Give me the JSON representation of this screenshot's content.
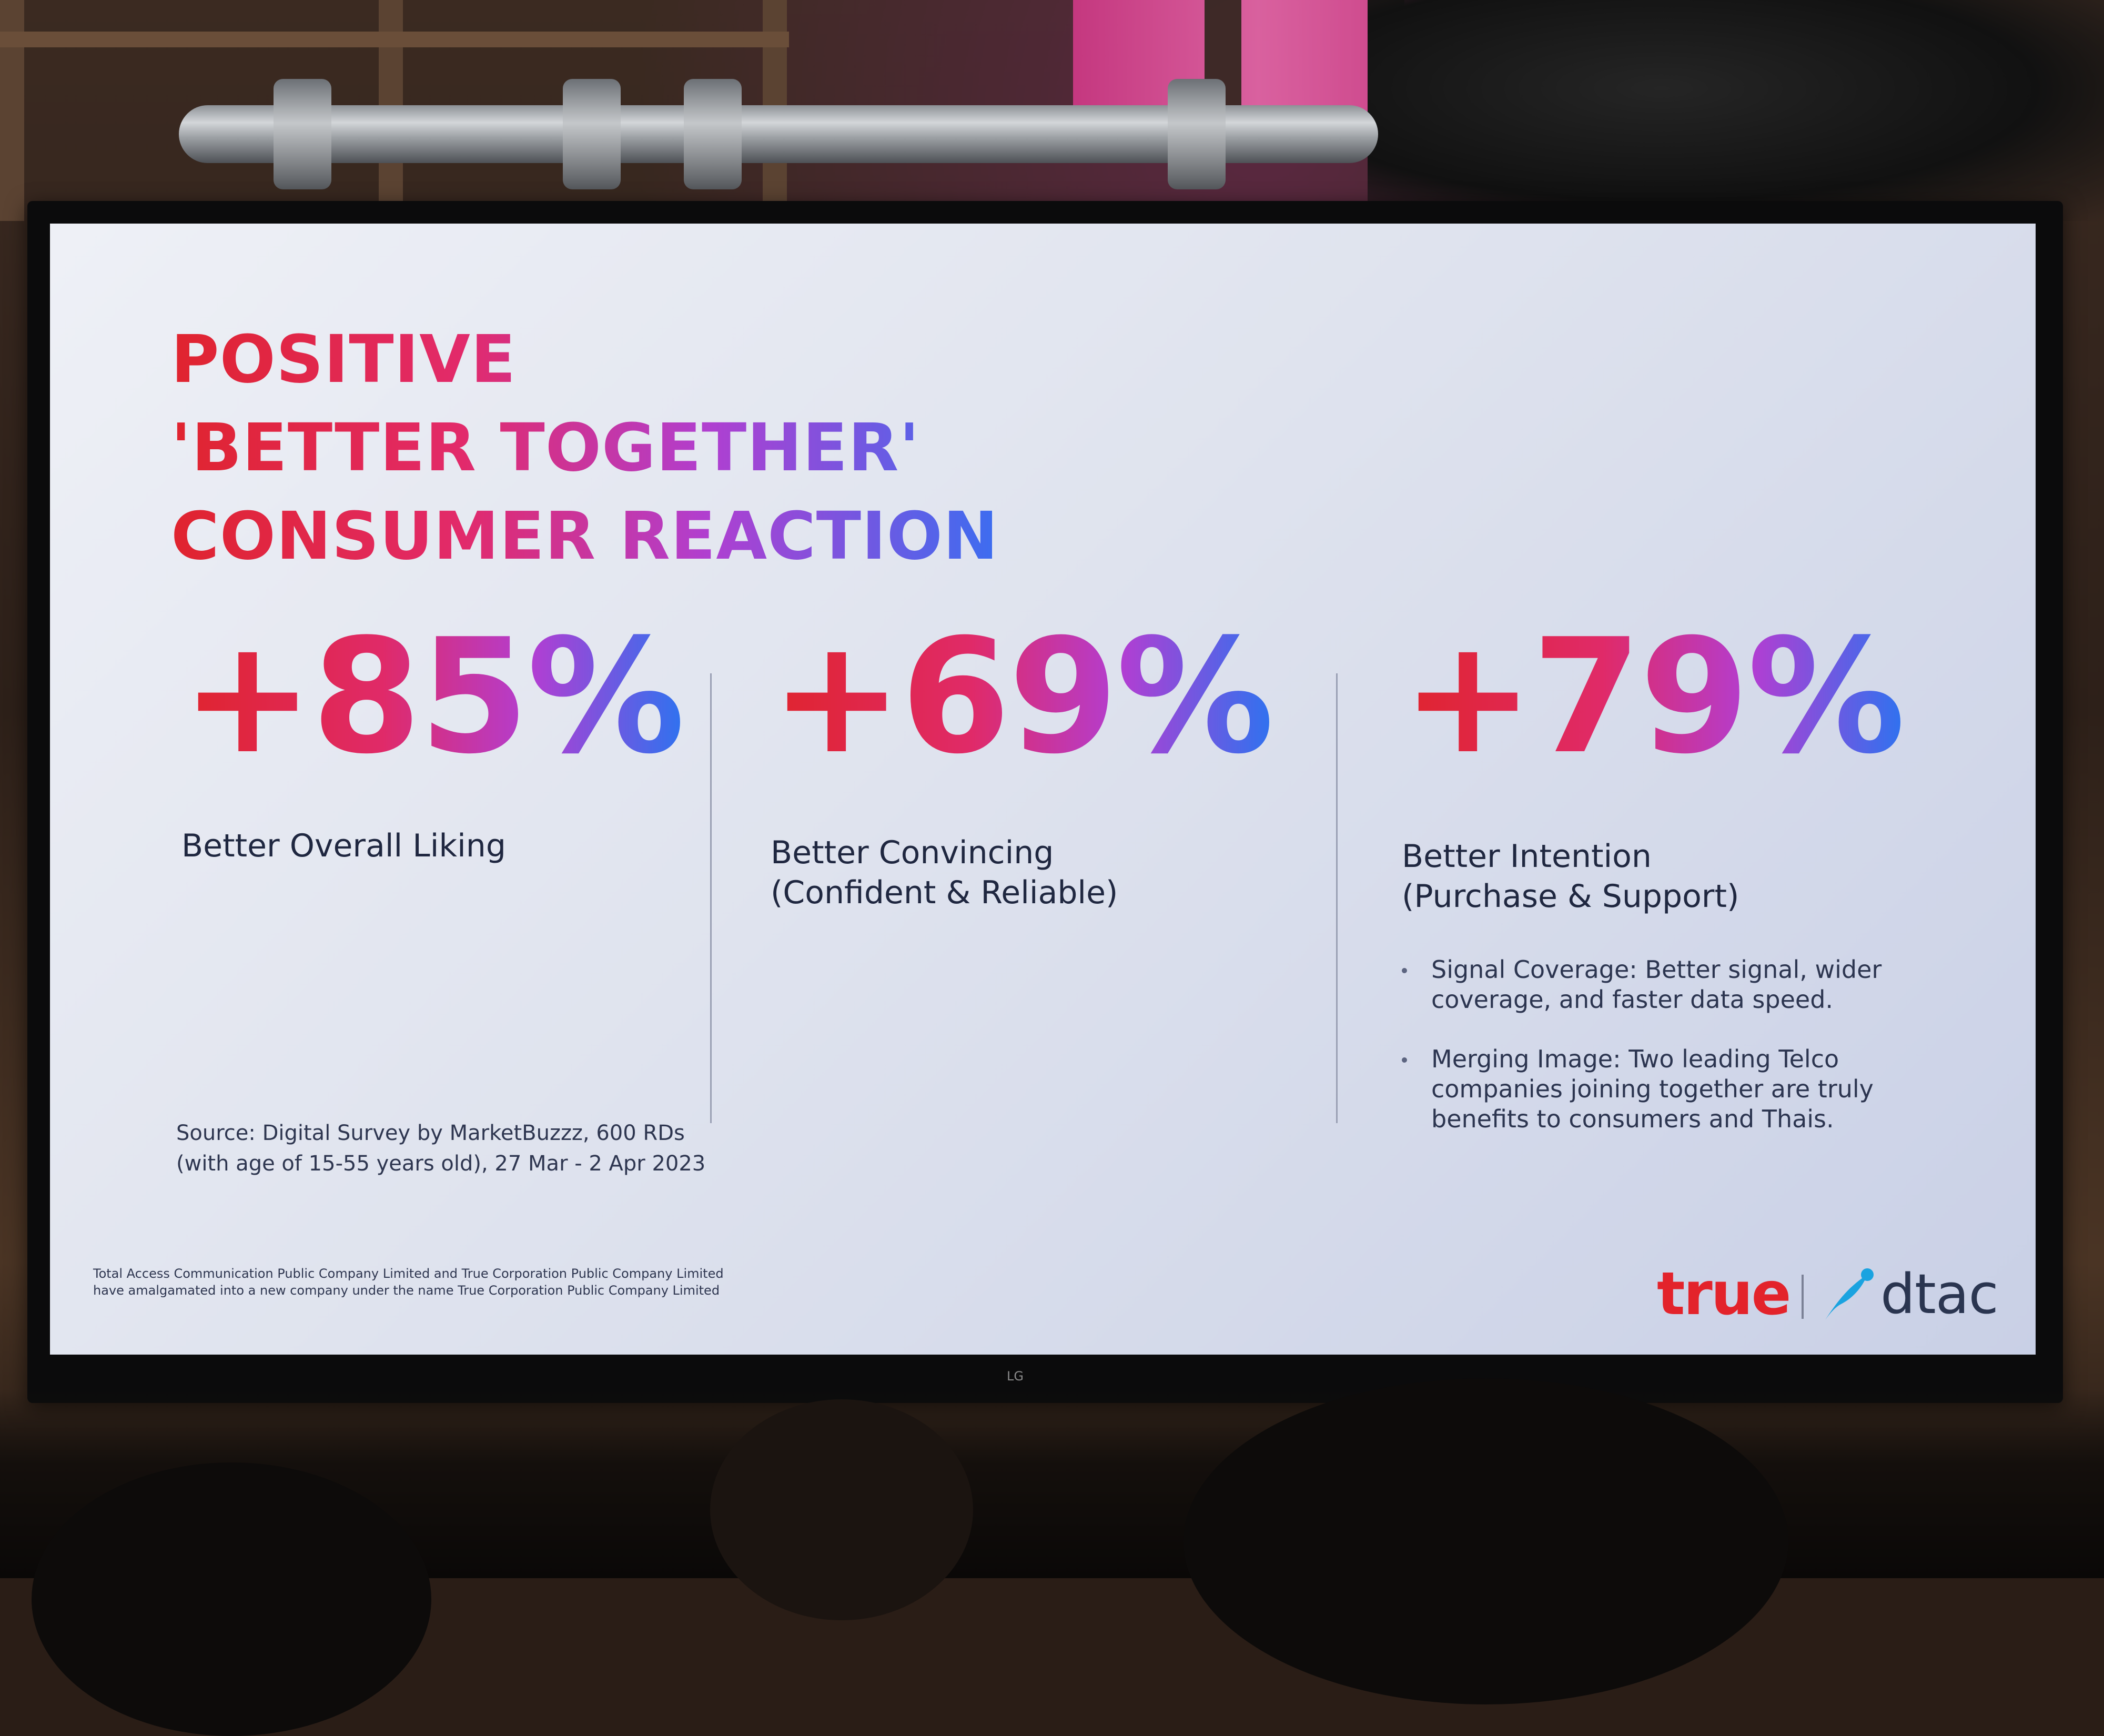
{
  "slide": {
    "title_lines": [
      "POSITIVE",
      "'BETTER TOGETHER'",
      "CONSUMER REACTION"
    ],
    "stats": [
      {
        "value": "+85%",
        "label_lines": [
          "Better Overall Liking"
        ]
      },
      {
        "value": "+69%",
        "label_lines": [
          "Better Convincing",
          "(Confident & Reliable)"
        ]
      },
      {
        "value": "+79%",
        "label_lines": [
          "Better Intention",
          "(Purchase & Support)"
        ]
      }
    ],
    "bullets": [
      {
        "lines": [
          "Signal Coverage: Better signal, wider",
          "coverage, and faster data speed."
        ]
      },
      {
        "lines": [
          "Merging Image: Two leading Telco",
          "companies joining together are truly",
          "benefits to consumers and Thais."
        ]
      }
    ],
    "source_lines": [
      "Source: Digital Survey by MarketBuzzz, 600 RDs",
      "(with age of 15-55 years old), 27 Mar - 2 Apr 2023"
    ],
    "fineprint_lines": [
      "Total Access Communication Public Company Limited and True Corporation Public Company Limited",
      "have amalgamated into a new company under the name True Corporation Public Company Limited"
    ],
    "brand": {
      "true_word": "true",
      "dtac_word": "dtac",
      "true_color": "#e3232b",
      "dtac_mark_color": "#1aa3e0"
    }
  },
  "tv": {
    "logo": "LG"
  }
}
